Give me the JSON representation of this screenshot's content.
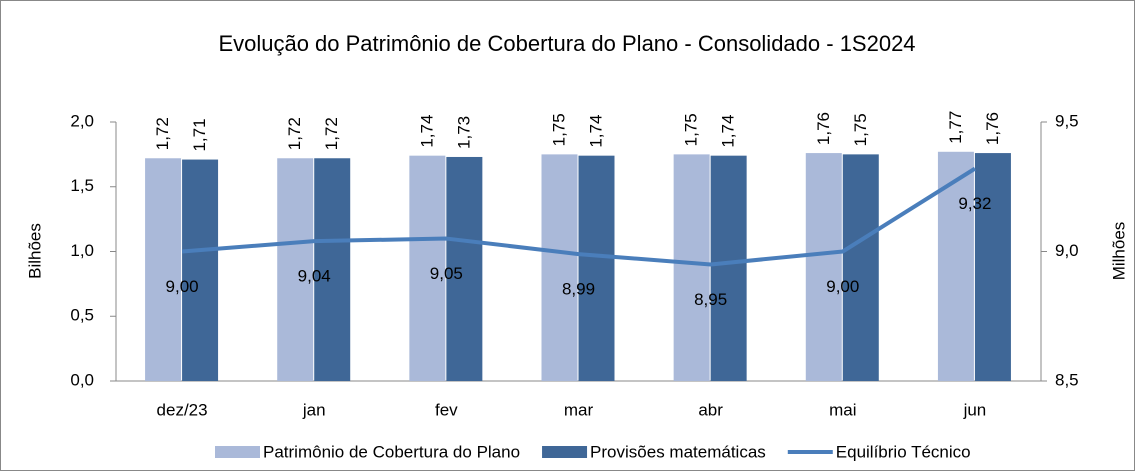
{
  "chart_data": {
    "type": "bar_line",
    "title": "Evolução do Patrimônio de Cobertura do Plano - Consolidado - 1S2024",
    "ylabel": "Bilhões",
    "y2label": "Milhões",
    "categories": [
      "dez/23",
      "jan",
      "fev",
      "mar",
      "abr",
      "mai",
      "jun"
    ],
    "series": [
      {
        "name": "Patrimônio de Cobertura do Plano",
        "color": "#aab9d9",
        "type": "bar",
        "values": [
          1.72,
          1.72,
          1.74,
          1.75,
          1.75,
          1.76,
          1.77
        ],
        "value_labels": [
          "1,72",
          "1,72",
          "1,74",
          "1,75",
          "1,75",
          "1,76",
          "1,77"
        ]
      },
      {
        "name": "Provisões matemáticas",
        "color": "#3f6797",
        "type": "bar",
        "values": [
          1.71,
          1.72,
          1.73,
          1.74,
          1.74,
          1.75,
          1.76
        ],
        "value_labels": [
          "1,71",
          "1,72",
          "1,73",
          "1,74",
          "1,74",
          "1,75",
          "1,76"
        ]
      },
      {
        "name": "Equilíbrio Técnico",
        "color": "#4a7ebb",
        "type": "line",
        "axis": "y2",
        "values": [
          9.0,
          9.04,
          9.05,
          8.99,
          8.95,
          9.0,
          9.32
        ],
        "value_labels": [
          "9,00",
          "9,04",
          "9,05",
          "8,99",
          "8,95",
          "9,00",
          "9,32"
        ]
      }
    ],
    "ylim": [
      0,
      2
    ],
    "yticks": [
      {
        "value": 0,
        "label": "0,0"
      },
      {
        "value": 0.5,
        "label": "0,5"
      },
      {
        "value": 1,
        "label": "1,0"
      },
      {
        "value": 1.5,
        "label": "1,5"
      },
      {
        "value": 2,
        "label": "2,0"
      }
    ],
    "y2lim": [
      8.5,
      9.5
    ],
    "y2ticks": [
      {
        "value": 8.5,
        "label": "8,5"
      },
      {
        "value": 9,
        "label": "9,0"
      },
      {
        "value": 9.5,
        "label": "9,5"
      }
    ],
    "legend": "bottom"
  }
}
